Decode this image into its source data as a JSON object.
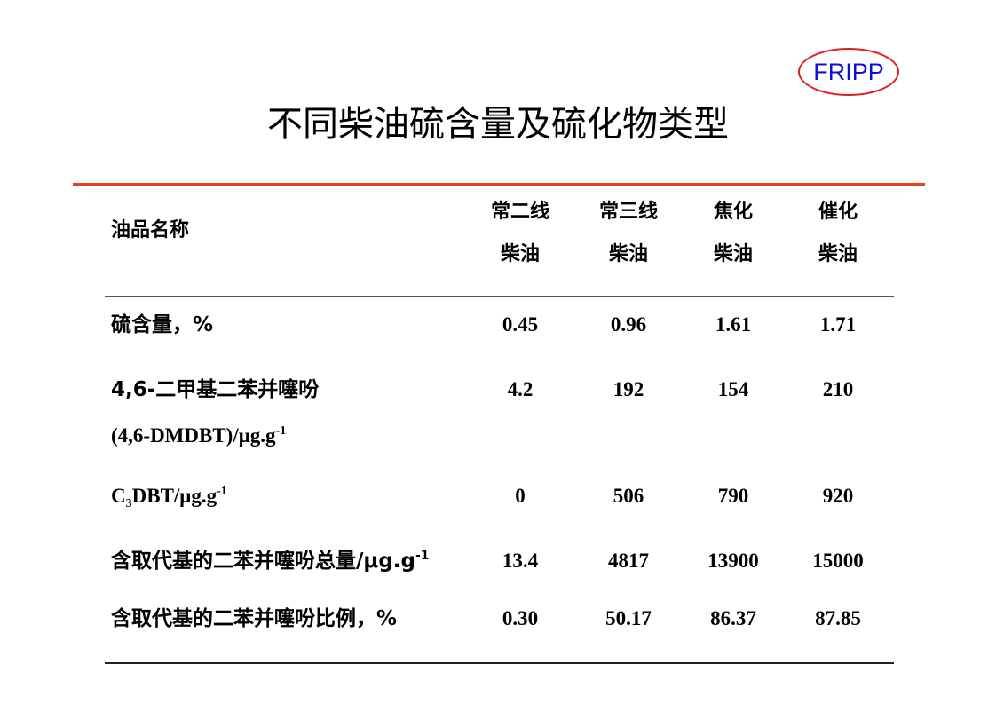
{
  "logo": {
    "text": "FRIPP",
    "border_color": "#e02020",
    "text_color": "#1010d0"
  },
  "title": "不同柴油硫含量及硫化物类型",
  "table": {
    "header_label": "油品名称",
    "columns": [
      {
        "line1": "常二线",
        "line2": "柴油"
      },
      {
        "line1": "常三线",
        "line2": "柴油"
      },
      {
        "line1": "焦化",
        "line2": "柴油"
      },
      {
        "line1": "催化",
        "line2": "柴油"
      }
    ],
    "rows": [
      {
        "label": "硫含量，%",
        "values": [
          "0.45",
          "0.96",
          "1.61",
          "1.71"
        ]
      },
      {
        "label": "4,6-二甲基二苯并噻吩",
        "label2": "(4,6-DMDBT)/μg.g",
        "label2_sup": "-1",
        "values": [
          "4.2",
          "192",
          "154",
          "210"
        ]
      },
      {
        "label": "C",
        "label_sub": "3",
        "label_rest": "DBT/μg.g",
        "label_sup": "-1",
        "values": [
          "0",
          "506",
          "790",
          "920"
        ]
      },
      {
        "label": "含取代基的二苯并噻吩总量/μg.g",
        "label_sup": "-1",
        "values": [
          "13.4",
          "4817",
          "13900",
          "15000"
        ]
      },
      {
        "label": "含取代基的二苯并噻吩比例，%",
        "values": [
          "0.30",
          "50.17",
          "86.37",
          "87.85"
        ]
      }
    ]
  },
  "accent_color": "#e8431e"
}
